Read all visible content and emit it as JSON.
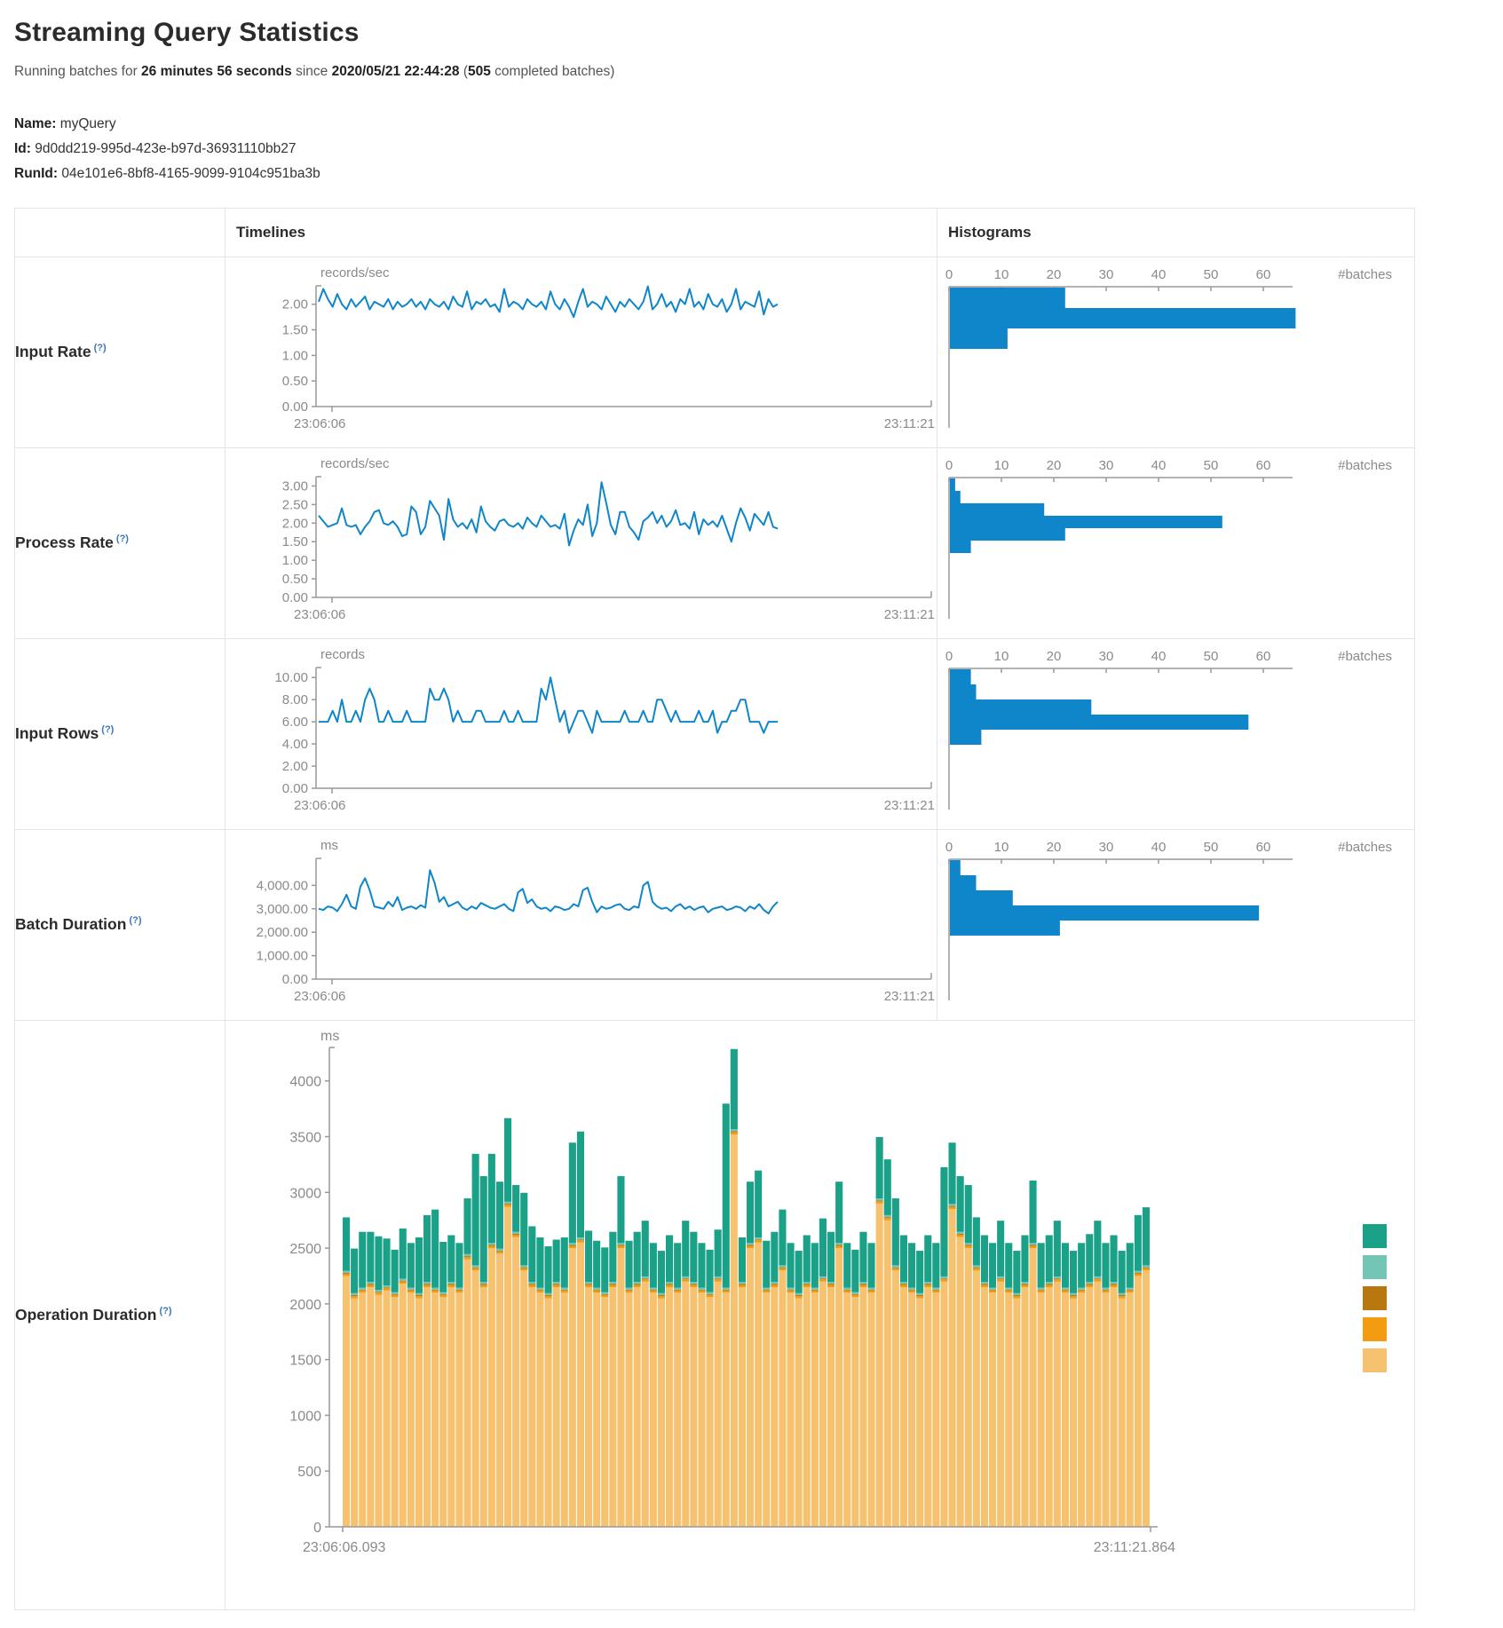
{
  "page": {
    "title": "Streaming Query Statistics",
    "running_prefix": "Running batches for ",
    "duration": "26 minutes 56 seconds",
    "since_text": " since ",
    "start_time": "2020/05/21 22:44:28",
    "paren_open": " (",
    "completed_batches": "505",
    "paren_close": " completed batches)"
  },
  "query_info": {
    "name_label": "Name:",
    "name": " myQuery",
    "id_label": "Id:",
    "id": " 9d0dd219-995d-423e-b97d-36931110bb27",
    "runid_label": "RunId:",
    "runid": " 04e101e6-8bf8-4165-9099-9104c951ba3b"
  },
  "table": {
    "timelines_header": "Timelines",
    "histograms_header": "Histograms",
    "rows": [
      {
        "label": "Input Rate",
        "help": "(?)"
      },
      {
        "label": "Process Rate",
        "help": "(?)"
      },
      {
        "label": "Input Rows",
        "help": "(?)"
      },
      {
        "label": "Batch Duration",
        "help": "(?)"
      },
      {
        "label": "Operation Duration",
        "help": "(?)"
      }
    ]
  },
  "colors": {
    "series_blue": "#0e86c9",
    "axis_gray": "#999999",
    "tick_text_gray": "#8a8a8a",
    "teal": "#1aa188",
    "light_teal": "#73c6b6",
    "dark_orange": "#b8770f",
    "orange": "#f39c12",
    "tan": "#f6c26f"
  },
  "chart_data": [
    {
      "id": "input-rate",
      "type": "line",
      "unit": "records/sec",
      "color": "#0e86c9",
      "ylim": [
        0,
        2.36
      ],
      "yticks": [
        {
          "label": "0.00",
          "value": 0
        },
        {
          "label": "0.50",
          "value": 0.5
        },
        {
          "label": "1.00",
          "value": 1
        },
        {
          "label": "1.50",
          "value": 1.5
        },
        {
          "label": "2.00",
          "value": 2
        }
      ],
      "x_start": "23:06:06",
      "x_end": "23:11:21",
      "values": [
        2.05,
        2.3,
        2.1,
        1.95,
        2.2,
        2.0,
        1.9,
        2.1,
        1.95,
        2.05,
        2.15,
        1.9,
        2.05,
        2.0,
        1.95,
        2.1,
        1.9,
        2.05,
        1.95,
        2.0,
        2.1,
        1.95,
        2.05,
        1.9,
        2.1,
        2.0,
        1.95,
        2.05,
        1.9,
        2.15,
        2.0,
        1.95,
        2.25,
        1.9,
        2.05,
        2.0,
        2.1,
        1.95,
        2.0,
        1.85,
        2.3,
        1.95,
        2.05,
        2.0,
        1.9,
        2.1,
        2.0,
        1.95,
        2.05,
        1.9,
        2.25,
        2.0,
        1.9,
        2.1,
        1.95,
        1.75,
        2.05,
        2.3,
        1.95,
        2.05,
        2.0,
        1.9,
        2.15,
        2.0,
        1.85,
        2.05,
        1.95,
        2.1,
        2.0,
        1.9,
        2.05,
        2.35,
        1.9,
        2.0,
        2.2,
        1.95,
        2.05,
        1.85,
        2.1,
        2.0,
        2.3,
        1.95,
        2.05,
        1.9,
        2.2,
        2.0,
        1.95,
        2.1,
        1.85,
        2.0,
        2.3,
        1.9,
        2.05,
        2.0,
        1.95,
        2.25,
        1.8,
        2.1,
        1.95,
        2.0
      ],
      "histogram": {
        "type": "bar-horizontal",
        "xticks": [
          0,
          10,
          20,
          30,
          40,
          50,
          60
        ],
        "xlabel": "#batches",
        "color": "#0e86c9",
        "values": [
          22,
          66,
          11
        ]
      }
    },
    {
      "id": "process-rate",
      "type": "line",
      "unit": "records/sec",
      "color": "#0e86c9",
      "ylim": [
        0,
        3.25
      ],
      "yticks": [
        {
          "label": "0.00",
          "value": 0
        },
        {
          "label": "0.50",
          "value": 0.5
        },
        {
          "label": "1.00",
          "value": 1
        },
        {
          "label": "1.50",
          "value": 1.5
        },
        {
          "label": "2.00",
          "value": 2
        },
        {
          "label": "2.50",
          "value": 2.5
        },
        {
          "label": "3.00",
          "value": 3
        }
      ],
      "x_start": "23:06:06",
      "x_end": "23:11:21",
      "values": [
        2.2,
        2.05,
        1.9,
        1.95,
        2.0,
        2.4,
        1.95,
        1.9,
        1.95,
        1.7,
        1.9,
        2.05,
        2.3,
        2.35,
        2.0,
        1.95,
        2.05,
        1.9,
        1.65,
        1.7,
        2.45,
        2.3,
        1.7,
        1.9,
        2.6,
        2.4,
        2.2,
        1.55,
        2.65,
        2.1,
        1.9,
        2.0,
        1.85,
        2.1,
        1.75,
        2.45,
        2.05,
        1.9,
        1.8,
        2.05,
        2.1,
        1.95,
        1.9,
        2.0,
        1.85,
        2.15,
        2.0,
        1.9,
        2.2,
        2.05,
        1.9,
        1.95,
        1.85,
        2.25,
        1.4,
        1.8,
        2.1,
        1.95,
        2.5,
        1.65,
        2.0,
        3.1,
        2.55,
        1.95,
        1.7,
        2.3,
        2.3,
        1.9,
        1.75,
        1.55,
        2.05,
        2.15,
        2.3,
        2.0,
        2.2,
        1.9,
        2.05,
        2.35,
        1.95,
        2.0,
        1.85,
        2.3,
        1.7,
        2.1,
        1.95,
        2.05,
        1.9,
        2.2,
        1.85,
        1.5,
        2.0,
        2.4,
        2.15,
        1.8,
        2.25,
        2.1,
        1.95,
        2.3,
        1.9,
        1.85
      ],
      "histogram": {
        "type": "bar-horizontal",
        "xticks": [
          0,
          10,
          20,
          30,
          40,
          50,
          60
        ],
        "xlabel": "#batches",
        "color": "#0e86c9",
        "values": [
          1,
          2,
          18,
          52,
          22,
          4
        ]
      }
    },
    {
      "id": "input-rows",
      "type": "line",
      "unit": "records",
      "color": "#0e86c9",
      "ylim": [
        0,
        10.9
      ],
      "yticks": [
        {
          "label": "0.00",
          "value": 0
        },
        {
          "label": "2.00",
          "value": 2
        },
        {
          "label": "4.00",
          "value": 4
        },
        {
          "label": "6.00",
          "value": 6
        },
        {
          "label": "8.00",
          "value": 8
        },
        {
          "label": "10.00",
          "value": 10
        }
      ],
      "x_start": "23:06:06",
      "x_end": "23:11:21",
      "values": [
        6,
        6,
        6,
        7,
        6,
        8,
        6,
        6,
        7,
        6,
        8,
        9,
        8,
        6,
        6,
        7,
        6,
        6,
        6,
        7,
        6,
        6,
        6,
        6,
        9,
        8,
        8,
        9,
        8,
        6,
        7,
        6,
        6,
        6,
        7,
        7,
        6,
        6,
        6,
        6,
        7,
        6,
        6,
        7,
        6,
        6,
        6,
        6,
        9,
        8,
        10,
        8,
        6,
        7,
        5,
        6,
        7,
        7,
        6,
        5,
        7,
        6,
        6,
        6,
        6,
        6,
        7,
        6,
        6,
        6,
        7,
        6,
        6,
        8,
        8,
        7,
        6,
        7,
        6,
        6,
        6,
        6,
        7,
        6,
        6,
        7,
        5,
        6,
        6,
        7,
        7,
        8,
        8,
        6,
        6,
        6,
        5,
        6,
        6,
        6
      ],
      "histogram": {
        "type": "bar-horizontal",
        "xticks": [
          0,
          10,
          20,
          30,
          40,
          50,
          60
        ],
        "xlabel": "#batches",
        "color": "#0e86c9",
        "values": [
          4,
          5,
          27,
          57,
          6
        ]
      }
    },
    {
      "id": "batch-duration",
      "type": "line",
      "unit": "ms",
      "color": "#0e86c9",
      "ylim": [
        0,
        5150
      ],
      "yticks": [
        {
          "label": "0.00",
          "value": 0
        },
        {
          "label": "1,000.00",
          "value": 1000
        },
        {
          "label": "2,000.00",
          "value": 2000
        },
        {
          "label": "3,000.00",
          "value": 3000
        },
        {
          "label": "4,000.00",
          "value": 4000
        }
      ],
      "x_start": "23:06:06",
      "x_end": "23:11:21",
      "values": [
        3000,
        2950,
        3100,
        3050,
        2900,
        3200,
        3600,
        3100,
        3000,
        3950,
        4300,
        3800,
        3100,
        3050,
        3000,
        3300,
        3100,
        3500,
        2950,
        3050,
        3100,
        3000,
        3150,
        3050,
        4650,
        4100,
        3300,
        3500,
        3100,
        3200,
        3300,
        3050,
        2950,
        3100,
        3000,
        3250,
        3150,
        3050,
        3000,
        3100,
        3200,
        3000,
        2900,
        3700,
        3850,
        3250,
        3400,
        3100,
        3000,
        3050,
        2900,
        3100,
        3050,
        2950,
        3000,
        3200,
        3100,
        3800,
        3900,
        3300,
        2850,
        3100,
        3000,
        3050,
        3150,
        3200,
        3000,
        2950,
        3100,
        3050,
        4000,
        4150,
        3300,
        3100,
        3000,
        3050,
        2900,
        3100,
        3200,
        3000,
        3100,
        2950,
        3050,
        3100,
        2850,
        3000,
        3050,
        3100,
        2950,
        3000,
        3100,
        3050,
        2900,
        3100,
        3000,
        3200,
        2950,
        2800,
        3100,
        3300
      ],
      "histogram": {
        "type": "bar-horizontal",
        "xticks": [
          0,
          10,
          20,
          30,
          40,
          50,
          60
        ],
        "xlabel": "#batches",
        "color": "#0e86c9",
        "values": [
          2,
          5,
          12,
          59,
          21
        ]
      }
    },
    {
      "id": "operation-duration",
      "type": "stacked-bar",
      "unit": "ms",
      "ylim": [
        0,
        4300
      ],
      "yticks": [
        {
          "label": "0",
          "value": 0
        },
        {
          "label": "500",
          "value": 500
        },
        {
          "label": "1000",
          "value": 1000
        },
        {
          "label": "1500",
          "value": 1500
        },
        {
          "label": "2000",
          "value": 2000
        },
        {
          "label": "2500",
          "value": 2500
        },
        {
          "label": "3000",
          "value": 3000
        },
        {
          "label": "3500",
          "value": 3500
        },
        {
          "label": "4000",
          "value": 4000
        }
      ],
      "x_start": "23:06:06.093",
      "x_end": "23:11:21.864",
      "legend": [
        {
          "name": "teal",
          "color": "#1aa188"
        },
        {
          "name": "light-teal",
          "color": "#73c6b6"
        },
        {
          "name": "dark-orange",
          "color": "#b8770f"
        },
        {
          "name": "orange",
          "color": "#f39c12"
        },
        {
          "name": "tan",
          "color": "#f6c26f"
        }
      ],
      "series": [
        {
          "name": "tan",
          "color": "#f6c26f",
          "values": [
            2250,
            2050,
            2100,
            2150,
            2080,
            2120,
            2060,
            2180,
            2100,
            2050,
            2150,
            2100,
            2060,
            2150,
            2100,
            2400,
            2300,
            2150,
            2500,
            2450,
            2870,
            2600,
            2300,
            2150,
            2100,
            2050,
            2150,
            2100,
            2500,
            2550,
            2150,
            2100,
            2060,
            2150,
            2500,
            2100,
            2150,
            2200,
            2100,
            2050,
            2150,
            2100,
            2200,
            2150,
            2100,
            2060,
            2200,
            2100,
            3520,
            2150,
            2500,
            2550,
            2100,
            2150,
            2300,
            2100,
            2050,
            2150,
            2100,
            2200,
            2150,
            2500,
            2100,
            2060,
            2150,
            2100,
            2900,
            2750,
            2300,
            2150,
            2100,
            2050,
            2150,
            2100,
            2200,
            2850,
            2600,
            2500,
            2300,
            2150,
            2100,
            2200,
            2100,
            2050,
            2150,
            2500,
            2100,
            2150,
            2200,
            2100,
            2050,
            2100,
            2150,
            2200,
            2100,
            2150,
            2050,
            2100,
            2250,
            2300
          ]
        },
        {
          "name": "orange",
          "color": "#f39c12",
          "values_fill": {
            "value": 20,
            "count": 100
          }
        },
        {
          "name": "dark-orange",
          "color": "#b8770f",
          "values_fill": {
            "value": 8,
            "count": 100
          }
        },
        {
          "name": "light-teal",
          "color": "#73c6b6",
          "values_fill": {
            "value": 18,
            "count": 100
          }
        },
        {
          "name": "teal",
          "color": "#1aa188",
          "values": [
            480,
            400,
            500,
            450,
            480,
            420,
            380,
            450,
            400,
            500,
            600,
            700,
            450,
            420,
            400,
            500,
            1000,
            950,
            800,
            600,
            750,
            420,
            650,
            500,
            450,
            420,
            380,
            450,
            900,
            950,
            460,
            420,
            400,
            450,
            600,
            420,
            450,
            500,
            400,
            380,
            420,
            400,
            500,
            450,
            400,
            380,
            420,
            1650,
            720,
            400,
            550,
            600,
            420,
            450,
            500,
            400,
            380,
            420,
            400,
            520,
            450,
            550,
            400,
            380,
            450,
            400,
            550,
            500,
            600,
            420,
            400,
            380,
            420,
            400,
            980,
            550,
            500,
            520,
            430,
            420,
            400,
            500,
            400,
            380,
            420,
            560,
            400,
            420,
            500,
            400,
            380,
            400,
            430,
            500,
            400,
            420,
            380,
            400,
            500,
            520
          ]
        }
      ]
    }
  ]
}
